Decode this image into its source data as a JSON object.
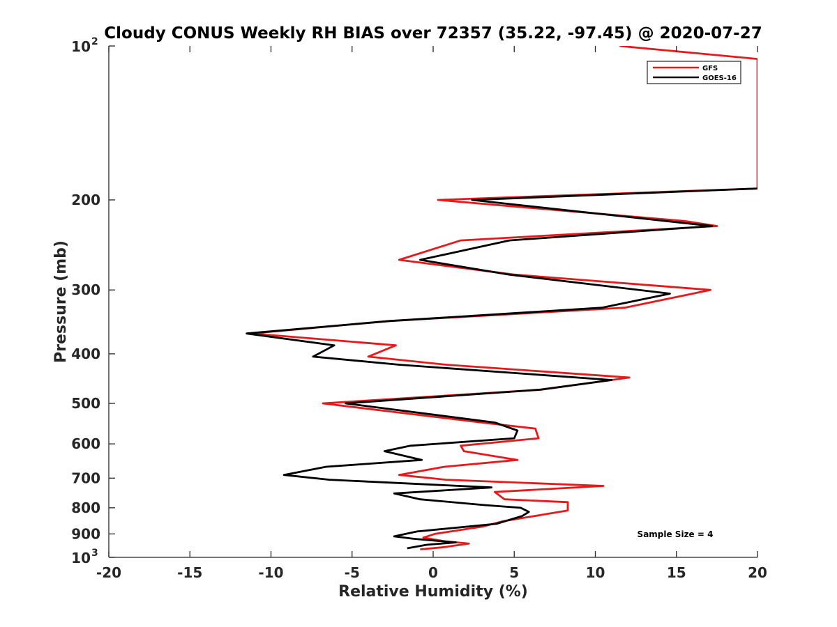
{
  "chart_data": {
    "type": "line",
    "title": "Cloudy CONUS Weekly RH BIAS over 72357 (35.22, -97.45) @ 2020-07-27",
    "xlabel": "Relative Humidity (%)",
    "ylabel": "Pressure (mb)",
    "xlim": [
      -20,
      20
    ],
    "ylim": [
      100,
      1000
    ],
    "y_scale": "log",
    "y_reversed": true,
    "x_ticks": [
      "-20",
      "-15",
      "-10",
      "-5",
      "0",
      "5",
      "10",
      "15",
      "20"
    ],
    "y_ticks": [
      {
        "value": 100,
        "base": "10",
        "exp": "2"
      },
      {
        "value": 200,
        "label": "200"
      },
      {
        "value": 300,
        "label": "300"
      },
      {
        "value": 400,
        "label": "400"
      },
      {
        "value": 500,
        "label": "500"
      },
      {
        "value": 600,
        "label": "600"
      },
      {
        "value": 700,
        "label": "700"
      },
      {
        "value": 800,
        "label": "800"
      },
      {
        "value": 900,
        "label": "900"
      },
      {
        "value": 1000,
        "base": "10",
        "exp": "3"
      }
    ],
    "grid": false,
    "legend_position": "top-right",
    "annotation": "Sample Size = 4",
    "series": [
      {
        "name": "GFS",
        "color": "#e8191b",
        "points": [
          [
            11.5,
            100
          ],
          [
            20,
            106
          ],
          [
            20,
            190
          ],
          [
            0.3,
            200
          ],
          [
            15.5,
            220
          ],
          [
            17.5,
            225
          ],
          [
            1.7,
            240
          ],
          [
            -2.1,
            262
          ],
          [
            5.0,
            280
          ],
          [
            17.1,
            300
          ],
          [
            11.8,
            325
          ],
          [
            -2.7,
            345
          ],
          [
            -11.2,
            365
          ],
          [
            -2.3,
            385
          ],
          [
            -4.0,
            405
          ],
          [
            0.8,
            420
          ],
          [
            12.1,
            445
          ],
          [
            6.7,
            470
          ],
          [
            -6.8,
            500
          ],
          [
            3.0,
            545
          ],
          [
            6.3,
            560
          ],
          [
            6.5,
            585
          ],
          [
            1.7,
            605
          ],
          [
            1.9,
            620
          ],
          [
            5.2,
            645
          ],
          [
            0.7,
            665
          ],
          [
            -2.1,
            690
          ],
          [
            0.8,
            705
          ],
          [
            10.5,
            725
          ],
          [
            3.8,
            745
          ],
          [
            4.4,
            770
          ],
          [
            8.3,
            780
          ],
          [
            8.3,
            810
          ],
          [
            4.3,
            850
          ],
          [
            3.1,
            870
          ],
          [
            0.1,
            900
          ],
          [
            -0.6,
            915
          ],
          [
            0.7,
            930
          ],
          [
            2.2,
            940
          ],
          [
            0.7,
            955
          ],
          [
            -0.8,
            965
          ]
        ]
      },
      {
        "name": "GOES-16",
        "color": "#000000",
        "points": [
          [
            20,
            190
          ],
          [
            2.4,
            200
          ],
          [
            17.2,
            225
          ],
          [
            4.7,
            240
          ],
          [
            -0.8,
            262
          ],
          [
            4.7,
            280
          ],
          [
            14.6,
            305
          ],
          [
            10.4,
            325
          ],
          [
            -2.7,
            345
          ],
          [
            -11.5,
            365
          ],
          [
            -6.1,
            385
          ],
          [
            -7.4,
            405
          ],
          [
            -2.1,
            420
          ],
          [
            11.0,
            450
          ],
          [
            6.6,
            470
          ],
          [
            -5.4,
            500
          ],
          [
            3.8,
            545
          ],
          [
            5.2,
            565
          ],
          [
            5.0,
            585
          ],
          [
            -1.4,
            605
          ],
          [
            -3.0,
            620
          ],
          [
            -0.7,
            645
          ],
          [
            -6.6,
            665
          ],
          [
            -9.2,
            690
          ],
          [
            -6.4,
            705
          ],
          [
            3.6,
            730
          ],
          [
            -2.4,
            750
          ],
          [
            -0.8,
            770
          ],
          [
            3.1,
            790
          ],
          [
            5.4,
            800
          ],
          [
            5.9,
            815
          ],
          [
            5.5,
            830
          ],
          [
            3.9,
            860
          ],
          [
            -1.0,
            890
          ],
          [
            -2.4,
            910
          ],
          [
            -1.2,
            920
          ],
          [
            1.4,
            935
          ],
          [
            -0.4,
            945
          ],
          [
            -1.6,
            960
          ]
        ]
      }
    ]
  }
}
